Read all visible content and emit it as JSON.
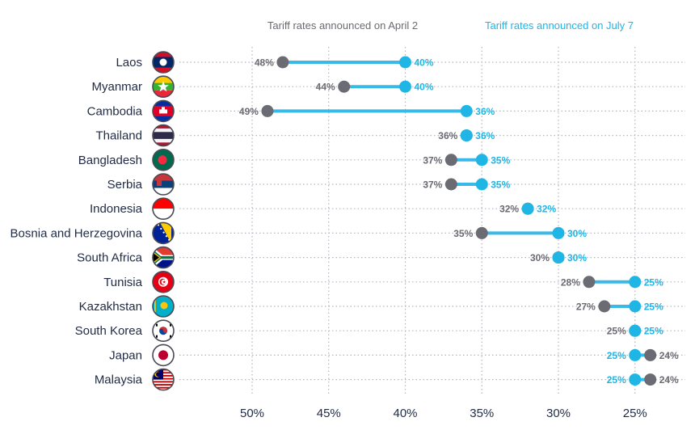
{
  "chart_data": {
    "type": "dumbbell",
    "title": "",
    "xlabel": "",
    "ylabel": "",
    "x_range": [
      0.5,
      0.235
    ],
    "x_axis_reversed": true,
    "grid": true,
    "xticks": [
      "50%",
      "45%",
      "40%",
      "35%",
      "30%",
      "25%"
    ],
    "xtick_values": [
      0.5,
      0.45,
      0.4,
      0.35,
      0.3,
      0.25
    ],
    "legend": [
      {
        "name": "Tariff rates announced on April 2",
        "color": "#6b6b73"
      },
      {
        "name": "Tariff rates announced on July 7",
        "color": "#1fb6e6"
      }
    ],
    "colors": {
      "april": "#6b6b73",
      "july": "#1fb6e6",
      "connector": "#39b9e8"
    },
    "rows": [
      {
        "country": "Laos",
        "flag": "laos-flag-icon",
        "april": 0.48,
        "april_label": "48%",
        "july": 0.4,
        "july_label": "40%"
      },
      {
        "country": "Myanmar",
        "flag": "myanmar-flag-icon",
        "april": 0.44,
        "april_label": "44%",
        "july": 0.4,
        "july_label": "40%"
      },
      {
        "country": "Cambodia",
        "flag": "cambodia-flag-icon",
        "april": 0.49,
        "april_label": "49%",
        "july": 0.36,
        "july_label": "36%"
      },
      {
        "country": "Thailand",
        "flag": "thailand-flag-icon",
        "april": 0.36,
        "april_label": "36%",
        "july": 0.36,
        "july_label": "36%"
      },
      {
        "country": "Bangladesh",
        "flag": "bangladesh-flag-icon",
        "april": 0.37,
        "april_label": "37%",
        "july": 0.35,
        "july_label": "35%"
      },
      {
        "country": "Serbia",
        "flag": "serbia-flag-icon",
        "april": 0.37,
        "april_label": "37%",
        "july": 0.35,
        "july_label": "35%"
      },
      {
        "country": "Indonesia",
        "flag": "indonesia-flag-icon",
        "april": 0.32,
        "april_label": "32%",
        "july": 0.32,
        "july_label": "32%"
      },
      {
        "country": "Bosnia and Herzegovina",
        "flag": "bosnia-flag-icon",
        "april": 0.35,
        "april_label": "35%",
        "july": 0.3,
        "july_label": "30%"
      },
      {
        "country": "South Africa",
        "flag": "south-africa-flag-icon",
        "april": 0.3,
        "april_label": "30%",
        "july": 0.3,
        "july_label": "30%"
      },
      {
        "country": "Tunisia",
        "flag": "tunisia-flag-icon",
        "april": 0.28,
        "april_label": "28%",
        "july": 0.25,
        "july_label": "25%"
      },
      {
        "country": "Kazakhstan",
        "flag": "kazakhstan-flag-icon",
        "april": 0.27,
        "april_label": "27%",
        "july": 0.25,
        "july_label": "25%"
      },
      {
        "country": "South Korea",
        "flag": "south-korea-flag-icon",
        "april": 0.25,
        "april_label": "25%",
        "july": 0.25,
        "july_label": "25%"
      },
      {
        "country": "Japan",
        "flag": "japan-flag-icon",
        "april": 0.24,
        "april_label": "24%",
        "july": 0.25,
        "july_label": "25%"
      },
      {
        "country": "Malaysia",
        "flag": "malaysia-flag-icon",
        "april": 0.24,
        "april_label": "24%",
        "july": 0.25,
        "july_label": "25%"
      }
    ]
  }
}
